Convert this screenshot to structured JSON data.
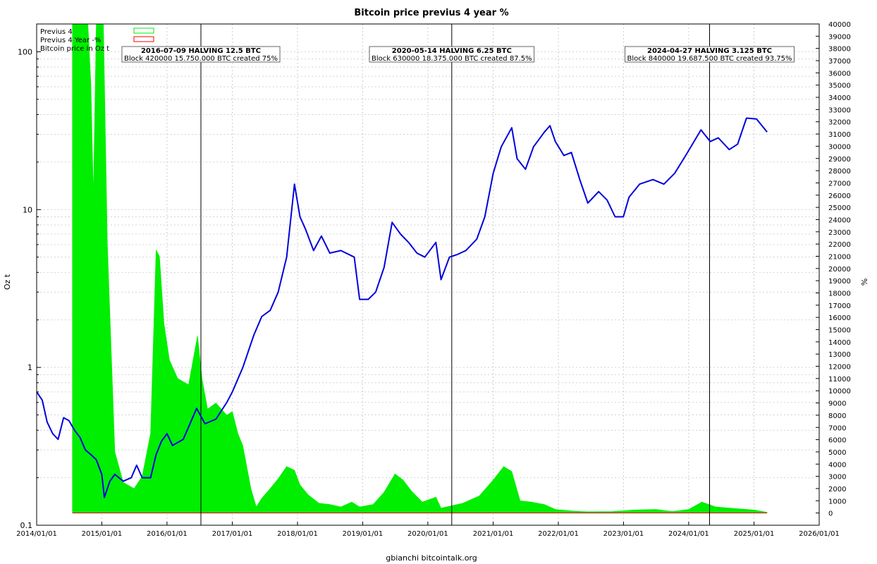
{
  "chart_data": {
    "type": "area",
    "title": "Bitcoin price previus 4 year %",
    "footer": "gbianchi bitcointalk.org",
    "ylabel_left": "Oz t",
    "ylabel_right": "%",
    "x_range": [
      "2014/01/01",
      "2026/01/01"
    ],
    "x_ticks": [
      "2014/01/01",
      "2015/01/01",
      "2016/01/01",
      "2017/01/01",
      "2018/01/01",
      "2019/01/01",
      "2020/01/01",
      "2021/01/01",
      "2022/01/01",
      "2023/01/01",
      "2024/01/01",
      "2025/01/01",
      "2026/01/01"
    ],
    "y_left_scale": "log",
    "y_left_range": [
      0.1,
      150
    ],
    "y_left_ticks": [
      {
        "value": 0.1,
        "label": "0.1"
      },
      {
        "value": 1,
        "label": "1"
      },
      {
        "value": 10,
        "label": "10"
      },
      {
        "value": 100,
        "label": "100"
      }
    ],
    "y_right_range": [
      -1000,
      40000
    ],
    "y_right_ticks": [
      0,
      1000,
      2000,
      3000,
      4000,
      5000,
      6000,
      7000,
      8000,
      9000,
      10000,
      11000,
      12000,
      13000,
      14000,
      15000,
      16000,
      17000,
      18000,
      19000,
      20000,
      21000,
      22000,
      23000,
      24000,
      25000,
      26000,
      27000,
      28000,
      29000,
      30000,
      31000,
      32000,
      33000,
      34000,
      35000,
      36000,
      37000,
      38000,
      39000,
      40000
    ],
    "grid": true,
    "legend_position": "top-left",
    "legend": [
      {
        "name": "Previus 4",
        "color": "#00ee00"
      },
      {
        "name": "Previus 4 Year -%",
        "color": "#ff0000"
      },
      {
        "name": "Bitcoin price in Oz t",
        "color": "#0000dd"
      }
    ],
    "series": [
      {
        "name": "Previus 4",
        "axis": "right",
        "color": "#00ee00",
        "points": [
          [
            "2014/07/20",
            0
          ],
          [
            "2014/07/20",
            40000
          ],
          [
            "2014/10/15",
            40000
          ],
          [
            "2014/11/01",
            35000
          ],
          [
            "2014/11/15",
            26000
          ],
          [
            "2014/12/01",
            40000
          ],
          [
            "2015/01/10",
            40000
          ],
          [
            "2015/02/01",
            22000
          ],
          [
            "2015/03/15",
            5000
          ],
          [
            "2015/05/01",
            2500
          ],
          [
            "2015/07/01",
            2000
          ],
          [
            "2015/08/15",
            3000
          ],
          [
            "2015/10/01",
            6500
          ],
          [
            "2015/11/01",
            21500
          ],
          [
            "2015/11/20",
            21000
          ],
          [
            "2015/12/15",
            15500
          ],
          [
            "2016/01/15",
            12500
          ],
          [
            "2016/03/01",
            11000
          ],
          [
            "2016/05/01",
            10500
          ],
          [
            "2016/06/20",
            14500
          ],
          [
            "2016/07/15",
            11000
          ],
          [
            "2016/08/15",
            8500
          ],
          [
            "2016/10/01",
            9000
          ],
          [
            "2016/12/01",
            8000
          ],
          [
            "2017/01/01",
            8300
          ],
          [
            "2017/02/01",
            6500
          ],
          [
            "2017/03/01",
            5500
          ],
          [
            "2017/04/15",
            2000
          ],
          [
            "2017/05/15",
            500
          ],
          [
            "2017/06/15",
            1200
          ],
          [
            "2017/08/01",
            2000
          ],
          [
            "2017/09/15",
            2800
          ],
          [
            "2017/11/01",
            3800
          ],
          [
            "2017/12/15",
            3500
          ],
          [
            "2018/01/15",
            2300
          ],
          [
            "2018/03/01",
            1500
          ],
          [
            "2018/05/01",
            800
          ],
          [
            "2018/07/01",
            700
          ],
          [
            "2018/09/01",
            500
          ],
          [
            "2018/11/01",
            900
          ],
          [
            "2018/12/15",
            500
          ],
          [
            "2019/03/01",
            700
          ],
          [
            "2019/05/01",
            1700
          ],
          [
            "2019/07/01",
            3200
          ],
          [
            "2019/08/15",
            2700
          ],
          [
            "2019/10/01",
            1800
          ],
          [
            "2019/12/01",
            900
          ],
          [
            "2020/02/15",
            1300
          ],
          [
            "2020/03/15",
            400
          ],
          [
            "2020/05/15",
            600
          ],
          [
            "2020/07/15",
            800
          ],
          [
            "2020/10/15",
            1400
          ],
          [
            "2021/01/01",
            2700
          ],
          [
            "2021/03/01",
            3800
          ],
          [
            "2021/04/15",
            3400
          ],
          [
            "2021/06/01",
            1000
          ],
          [
            "2021/08/01",
            900
          ],
          [
            "2021/10/15",
            700
          ],
          [
            "2021/12/15",
            300
          ],
          [
            "2022/04/01",
            150
          ],
          [
            "2022/06/15",
            100
          ],
          [
            "2022/11/01",
            120
          ],
          [
            "2023/03/01",
            250
          ],
          [
            "2023/07/01",
            300
          ],
          [
            "2023/10/01",
            120
          ],
          [
            "2024/01/01",
            300
          ],
          [
            "2024/03/15",
            900
          ],
          [
            "2024/06/01",
            500
          ],
          [
            "2024/10/01",
            350
          ],
          [
            "2025/01/01",
            250
          ],
          [
            "2025/03/15",
            50
          ],
          [
            "2025/03/15",
            0
          ]
        ]
      },
      {
        "name": "Bitcoin price in Oz t",
        "axis": "left",
        "color": "#0000dd",
        "points": [
          [
            "2014/01/01",
            0.7
          ],
          [
            "2014/02/01",
            0.62
          ],
          [
            "2014/03/01",
            0.45
          ],
          [
            "2014/04/01",
            0.38
          ],
          [
            "2014/05/01",
            0.35
          ],
          [
            "2014/06/01",
            0.48
          ],
          [
            "2014/07/01",
            0.46
          ],
          [
            "2014/08/01",
            0.4
          ],
          [
            "2014/09/01",
            0.36
          ],
          [
            "2014/10/01",
            0.3
          ],
          [
            "2014/11/01",
            0.28
          ],
          [
            "2014/12/01",
            0.26
          ],
          [
            "2015/01/01",
            0.21
          ],
          [
            "2015/01/15",
            0.15
          ],
          [
            "2015/02/15",
            0.19
          ],
          [
            "2015/03/15",
            0.21
          ],
          [
            "2015/05/01",
            0.19
          ],
          [
            "2015/06/15",
            0.2
          ],
          [
            "2015/07/15",
            0.24
          ],
          [
            "2015/08/15",
            0.2
          ],
          [
            "2015/10/01",
            0.2
          ],
          [
            "2015/11/01",
            0.28
          ],
          [
            "2015/12/01",
            0.34
          ],
          [
            "2016/01/01",
            0.38
          ],
          [
            "2016/02/01",
            0.32
          ],
          [
            "2016/04/01",
            0.35
          ],
          [
            "2016/06/15",
            0.55
          ],
          [
            "2016/08/01",
            0.44
          ],
          [
            "2016/10/01",
            0.47
          ],
          [
            "2016/12/01",
            0.6
          ],
          [
            "2017/01/01",
            0.7
          ],
          [
            "2017/03/01",
            1.0
          ],
          [
            "2017/05/01",
            1.6
          ],
          [
            "2017/06/15",
            2.1
          ],
          [
            "2017/08/01",
            2.3
          ],
          [
            "2017/09/15",
            3.0
          ],
          [
            "2017/11/01",
            5.0
          ],
          [
            "2017/12/15",
            14.5
          ],
          [
            "2018/01/15",
            9.0
          ],
          [
            "2018/02/15",
            7.5
          ],
          [
            "2018/04/01",
            5.5
          ],
          [
            "2018/05/15",
            6.8
          ],
          [
            "2018/07/01",
            5.3
          ],
          [
            "2018/09/01",
            5.5
          ],
          [
            "2018/11/15",
            5.0
          ],
          [
            "2018/12/15",
            2.7
          ],
          [
            "2019/02/01",
            2.7
          ],
          [
            "2019/03/15",
            3.0
          ],
          [
            "2019/05/01",
            4.3
          ],
          [
            "2019/06/15",
            8.3
          ],
          [
            "2019/08/01",
            7.0
          ],
          [
            "2019/09/15",
            6.2
          ],
          [
            "2019/11/01",
            5.3
          ],
          [
            "2019/12/15",
            5.0
          ],
          [
            "2020/02/15",
            6.2
          ],
          [
            "2020/03/15",
            3.6
          ],
          [
            "2020/05/01",
            5.0
          ],
          [
            "2020/06/15",
            5.2
          ],
          [
            "2020/08/01",
            5.5
          ],
          [
            "2020/10/01",
            6.5
          ],
          [
            "2020/11/15",
            9.0
          ],
          [
            "2021/01/01",
            17.0
          ],
          [
            "2021/02/15",
            25.0
          ],
          [
            "2021/04/15",
            33.0
          ],
          [
            "2021/05/15",
            21.0
          ],
          [
            "2021/07/01",
            18.0
          ],
          [
            "2021/08/15",
            25.0
          ],
          [
            "2021/10/15",
            31.0
          ],
          [
            "2021/11/15",
            34.0
          ],
          [
            "2021/12/15",
            27.0
          ],
          [
            "2022/02/01",
            22.0
          ],
          [
            "2022/03/15",
            23.0
          ],
          [
            "2022/05/01",
            15.5
          ],
          [
            "2022/06/15",
            11.0
          ],
          [
            "2022/08/15",
            13.0
          ],
          [
            "2022/10/01",
            11.5
          ],
          [
            "2022/11/15",
            9.0
          ],
          [
            "2022/12/31",
            9.0
          ],
          [
            "2023/02/01",
            12.0
          ],
          [
            "2023/04/01",
            14.5
          ],
          [
            "2023/06/15",
            15.5
          ],
          [
            "2023/08/15",
            14.5
          ],
          [
            "2023/10/15",
            17.0
          ],
          [
            "2023/12/15",
            22.0
          ],
          [
            "2024/03/10",
            32.0
          ],
          [
            "2024/05/01",
            27.0
          ],
          [
            "2024/06/15",
            28.5
          ],
          [
            "2024/08/15",
            24.0
          ],
          [
            "2024/10/01",
            26.0
          ],
          [
            "2024/11/20",
            38.0
          ],
          [
            "2025/01/15",
            37.5
          ],
          [
            "2025/03/15",
            31.0
          ]
        ]
      }
    ],
    "annotations": [
      {
        "date": "2016/07/09",
        "title": "2016-07-09 HALVING 12.5 BTC",
        "text": "Block 420000 15.750.000 BTC created 75%"
      },
      {
        "date": "2020/05/14",
        "title": "2020-05-14 HALVING 6.25 BTC",
        "text": "Block 630000 18.375.000 BTC created 87.5%"
      },
      {
        "date": "2024/04/27",
        "title": "2024-04-27 HALVING 3.125 BTC",
        "text": "Block 840000 19.687.500 BTC created 93.75%"
      }
    ]
  }
}
